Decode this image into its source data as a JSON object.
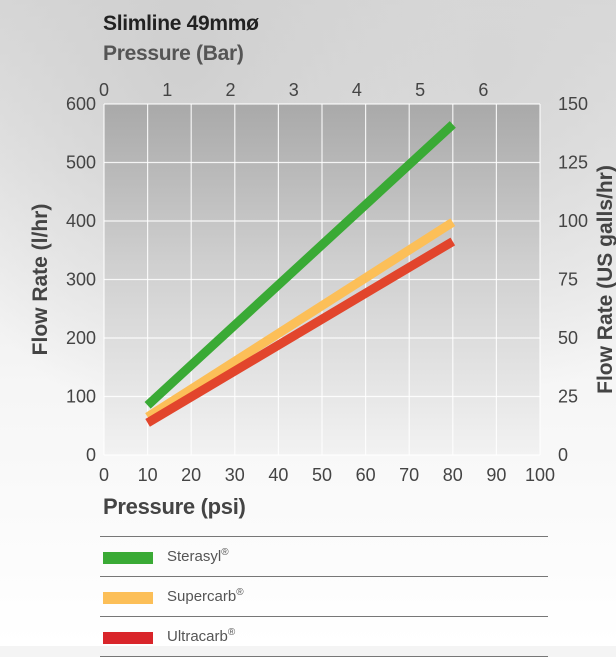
{
  "chart_data": {
    "type": "line",
    "title": "Slimline 49mmø",
    "x_axis": {
      "label": "Pressure (psi)",
      "ticks": [
        "0",
        "10",
        "20",
        "30",
        "40",
        "50",
        "60",
        "70",
        "80",
        "90",
        "100"
      ],
      "range": [
        0,
        100
      ]
    },
    "x2_axis": {
      "label": "Pressure (Bar)",
      "ticks": [
        "0",
        "1",
        "2",
        "3",
        "4",
        "5",
        "6"
      ],
      "range": [
        0,
        6.895
      ]
    },
    "y_axis": {
      "label": "Flow Rate (l/hr)",
      "ticks": [
        "0",
        "100",
        "200",
        "300",
        "400",
        "500",
        "600"
      ],
      "range": [
        0,
        600
      ]
    },
    "y2_axis": {
      "label": "Flow Rate (US galls/hr)",
      "ticks": [
        "0",
        "25",
        "50",
        "75",
        "100",
        "125",
        "150"
      ],
      "range": [
        0,
        150
      ]
    },
    "grid": true,
    "legend_position": "bottom",
    "series": [
      {
        "name": "Sterasyl",
        "color": "#3aaa35",
        "x": [
          10,
          80
        ],
        "y": [
          85,
          565
        ]
      },
      {
        "name": "Supercarb",
        "color": "#fcbf58",
        "x": [
          10,
          80
        ],
        "y": [
          65,
          398
        ]
      },
      {
        "name": "Ultracarb",
        "color": "#e2452c",
        "x": [
          10,
          80
        ],
        "y": [
          55,
          365
        ]
      }
    ]
  },
  "legend": [
    {
      "label": "Sterasyl",
      "mark": "®",
      "color": "#3aaa35"
    },
    {
      "label": "Supercarb",
      "mark": "®",
      "color": "#fcbf58"
    },
    {
      "label": "Ultracarb",
      "mark": "®",
      "color": "#d9252a"
    }
  ]
}
